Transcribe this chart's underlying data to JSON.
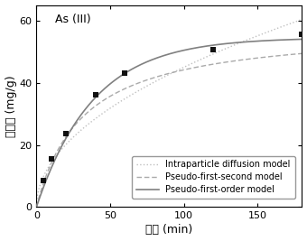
{
  "title": "As (III)",
  "xlabel": "时间 (min)",
  "ylabel": "吸附量 (mg/g)",
  "xlim": [
    0,
    180
  ],
  "ylim": [
    0,
    65
  ],
  "xticks": [
    0,
    50,
    100,
    150
  ],
  "yticks": [
    0,
    20,
    40,
    60
  ],
  "data_points_x": [
    5,
    10,
    20,
    40,
    60,
    120,
    180
  ],
  "data_points_y": [
    8.5,
    15.5,
    23.5,
    36.0,
    43.0,
    50.5,
    55.5
  ],
  "pseudo_first_order_params": {
    "qe": 54.5,
    "k1": 0.026
  },
  "pseudo_second_order_params": {
    "qe": 58.0,
    "k2": 0.00055
  },
  "intraparticle_params": {
    "ki": 4.5,
    "C": 0.0
  },
  "line_color_solid": "#808080",
  "line_color_dashed": "#aaaaaa",
  "line_color_dotted": "#c0c0c0",
  "marker_color": "#111111",
  "legend_labels": [
    "Pseudo-first-order model",
    "Pseudo-first-second model",
    "Intraparticle diffusion model"
  ],
  "background_color": "#ffffff",
  "fontsize_title": 9,
  "fontsize_label": 9,
  "fontsize_tick": 8,
  "fontsize_legend": 7
}
